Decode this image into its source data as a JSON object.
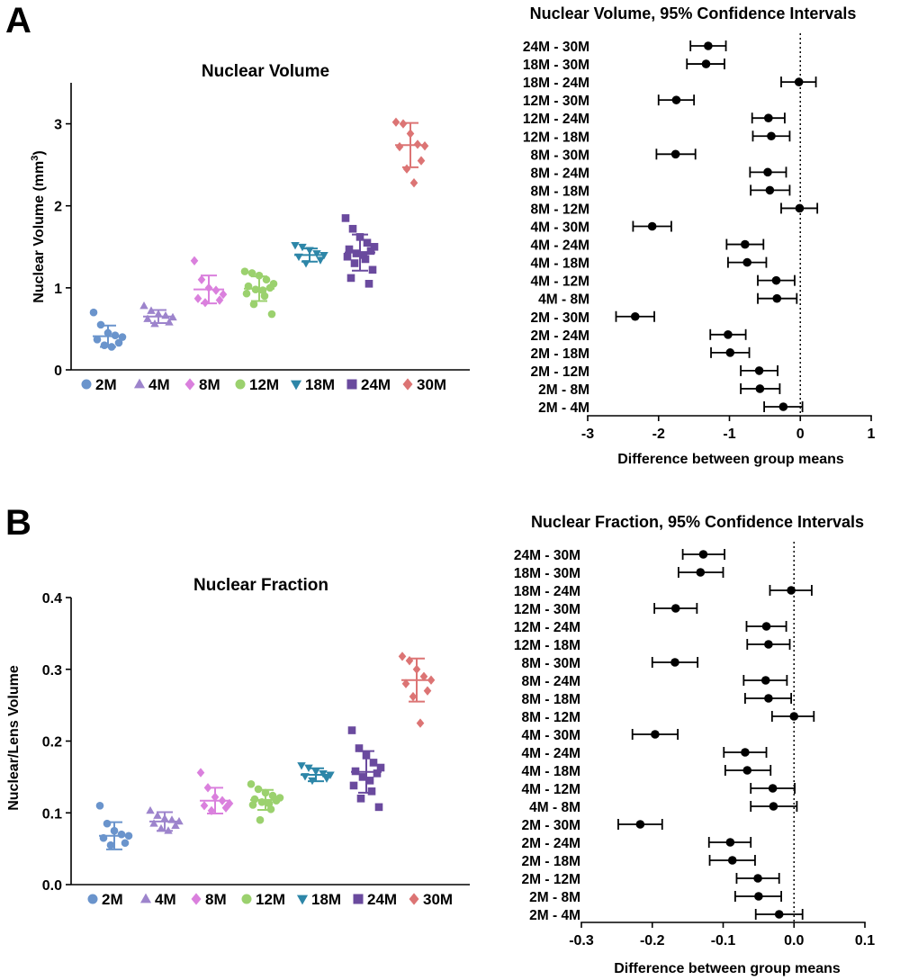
{
  "panels": {
    "a": "A",
    "b": "B"
  },
  "chart_data": [
    {
      "type": "scatter",
      "title": "Nuclear Volume",
      "ylabel": "Nuclear Volume (mm",
      "ylabel_sup": "3",
      "ylabel_close": ")",
      "ylim": [
        0,
        3.5
      ],
      "yticks": [
        "0",
        "1",
        "2",
        "3"
      ],
      "tickvals": [
        0,
        1,
        2,
        3
      ],
      "series": [
        {
          "name": "2M",
          "color": "#6a94cc",
          "marker": "circle",
          "mean": 0.41,
          "sd": 0.13,
          "values": [
            0.7,
            0.55,
            0.45,
            0.42,
            0.4,
            0.37,
            0.33,
            0.3,
            0.28
          ]
        },
        {
          "name": "4M",
          "color": "#9d84cc",
          "marker": "triangle-up",
          "mean": 0.65,
          "sd": 0.08,
          "values": [
            0.78,
            0.72,
            0.68,
            0.66,
            0.64,
            0.62,
            0.58,
            0.56
          ]
        },
        {
          "name": "8M",
          "color": "#da80dd",
          "marker": "diamond",
          "mean": 0.98,
          "sd": 0.17,
          "values": [
            1.33,
            1.1,
            1.0,
            0.97,
            0.92,
            0.87,
            0.85,
            0.82
          ]
        },
        {
          "name": "12M",
          "color": "#9bd16e",
          "marker": "circle",
          "mean": 0.99,
          "sd": 0.15,
          "values": [
            1.2,
            1.18,
            1.15,
            1.1,
            1.05,
            1.02,
            1.0,
            0.98,
            0.97,
            0.93,
            0.9,
            0.8,
            0.68
          ]
        },
        {
          "name": "18M",
          "color": "#2d86a8",
          "marker": "triangle-down",
          "mean": 1.4,
          "sd": 0.08,
          "values": [
            1.52,
            1.5,
            1.46,
            1.42,
            1.4,
            1.38,
            1.34,
            1.3
          ]
        },
        {
          "name": "24M",
          "color": "#6a4a9e",
          "marker": "square",
          "mean": 1.43,
          "sd": 0.22,
          "values": [
            1.85,
            1.72,
            1.62,
            1.55,
            1.5,
            1.47,
            1.45,
            1.42,
            1.4,
            1.38,
            1.35,
            1.3,
            1.22,
            1.12,
            1.05
          ]
        },
        {
          "name": "30M",
          "color": "#dc7474",
          "marker": "diamond",
          "mean": 2.74,
          "sd": 0.27,
          "values": [
            3.02,
            3.0,
            2.88,
            2.75,
            2.73,
            2.72,
            2.55,
            2.45,
            2.28
          ]
        }
      ]
    },
    {
      "type": "forest",
      "title": "Nuclear Volume, 95% Confidence Intervals",
      "xlabel": "Difference between group means",
      "xlim": [
        -3,
        1
      ],
      "xticks": [
        "-3",
        "-2",
        "-1",
        "0",
        "1"
      ],
      "tickvals": [
        -3,
        -2,
        -1,
        0,
        1
      ],
      "rows": [
        {
          "label": "24M - 30M",
          "mean": -1.3,
          "lo": -1.55,
          "hi": -1.05
        },
        {
          "label": "18M - 30M",
          "mean": -1.33,
          "lo": -1.6,
          "hi": -1.07
        },
        {
          "label": "18M - 24M",
          "mean": -0.02,
          "lo": -0.27,
          "hi": 0.22
        },
        {
          "label": "12M - 30M",
          "mean": -1.75,
          "lo": -2.0,
          "hi": -1.5
        },
        {
          "label": "12M - 24M",
          "mean": -0.45,
          "lo": -0.68,
          "hi": -0.22
        },
        {
          "label": "12M - 18M",
          "mean": -0.41,
          "lo": -0.67,
          "hi": -0.15
        },
        {
          "label": "8M - 30M",
          "mean": -1.76,
          "lo": -2.03,
          "hi": -1.48
        },
        {
          "label": "8M - 24M",
          "mean": -0.46,
          "lo": -0.71,
          "hi": -0.2
        },
        {
          "label": "8M - 18M",
          "mean": -0.43,
          "lo": -0.7,
          "hi": -0.15
        },
        {
          "label": "8M - 12M",
          "mean": -0.01,
          "lo": -0.27,
          "hi": 0.24
        },
        {
          "label": "4M - 30M",
          "mean": -2.09,
          "lo": -2.36,
          "hi": -1.82
        },
        {
          "label": "4M - 24M",
          "mean": -0.78,
          "lo": -1.04,
          "hi": -0.52
        },
        {
          "label": "4M - 18M",
          "mean": -0.75,
          "lo": -1.02,
          "hi": -0.48
        },
        {
          "label": "4M - 12M",
          "mean": -0.34,
          "lo": -0.6,
          "hi": -0.08
        },
        {
          "label": "4M - 8M",
          "mean": -0.33,
          "lo": -0.6,
          "hi": -0.05
        },
        {
          "label": "2M - 30M",
          "mean": -2.33,
          "lo": -2.6,
          "hi": -2.06
        },
        {
          "label": "2M - 24M",
          "mean": -1.02,
          "lo": -1.27,
          "hi": -0.77
        },
        {
          "label": "2M - 18M",
          "mean": -0.99,
          "lo": -1.26,
          "hi": -0.72
        },
        {
          "label": "2M - 12M",
          "mean": -0.58,
          "lo": -0.84,
          "hi": -0.32
        },
        {
          "label": "2M - 8M",
          "mean": -0.57,
          "lo": -0.84,
          "hi": -0.29
        },
        {
          "label": "2M - 4M",
          "mean": -0.24,
          "lo": -0.51,
          "hi": 0.03
        }
      ]
    },
    {
      "type": "scatter",
      "title": "Nuclear Fraction",
      "ylabel": "Nuclear/Lens Volume",
      "ylim": [
        0,
        0.4
      ],
      "yticks": [
        "0.0",
        "0.1",
        "0.2",
        "0.3",
        "0.4"
      ],
      "tickvals": [
        0,
        0.1,
        0.2,
        0.3,
        0.4
      ],
      "series": [
        {
          "name": "2M",
          "color": "#6a94cc",
          "marker": "circle",
          "mean": 0.068,
          "sd": 0.019,
          "values": [
            0.11,
            0.085,
            0.075,
            0.07,
            0.068,
            0.065,
            0.058,
            0.055
          ]
        },
        {
          "name": "4M",
          "color": "#9d84cc",
          "marker": "triangle-up",
          "mean": 0.088,
          "sd": 0.013,
          "values": [
            0.103,
            0.096,
            0.092,
            0.09,
            0.088,
            0.085,
            0.082,
            0.078,
            0.075
          ]
        },
        {
          "name": "8M",
          "color": "#da80dd",
          "marker": "diamond",
          "mean": 0.117,
          "sd": 0.018,
          "values": [
            0.156,
            0.135,
            0.122,
            0.117,
            0.113,
            0.11,
            0.107,
            0.103
          ]
        },
        {
          "name": "12M",
          "color": "#9bd16e",
          "marker": "circle",
          "mean": 0.118,
          "sd": 0.014,
          "values": [
            0.14,
            0.133,
            0.128,
            0.124,
            0.121,
            0.119,
            0.117,
            0.115,
            0.113,
            0.111,
            0.105,
            0.09
          ]
        },
        {
          "name": "18M",
          "color": "#2d86a8",
          "marker": "triangle-down",
          "mean": 0.153,
          "sd": 0.009,
          "values": [
            0.166,
            0.163,
            0.158,
            0.155,
            0.153,
            0.151,
            0.148,
            0.145
          ]
        },
        {
          "name": "24M",
          "color": "#6a4a9e",
          "marker": "square",
          "mean": 0.157,
          "sd": 0.029,
          "values": [
            0.215,
            0.19,
            0.18,
            0.17,
            0.163,
            0.158,
            0.155,
            0.15,
            0.145,
            0.138,
            0.13,
            0.12,
            0.108
          ]
        },
        {
          "name": "30M",
          "color": "#dc7474",
          "marker": "diamond",
          "mean": 0.285,
          "sd": 0.03,
          "values": [
            0.318,
            0.312,
            0.3,
            0.29,
            0.285,
            0.28,
            0.27,
            0.262,
            0.225
          ]
        }
      ]
    },
    {
      "type": "forest",
      "title": "Nuclear Fraction, 95% Confidence Intervals",
      "xlabel": "Difference between group means",
      "xlim": [
        -0.3,
        0.1
      ],
      "xticks": [
        "-0.3",
        "-0.2",
        "-0.1",
        "0.0",
        "0.1"
      ],
      "tickvals": [
        -0.3,
        -0.2,
        -0.1,
        0,
        0.1
      ],
      "rows": [
        {
          "label": "24M - 30M",
          "mean": -0.128,
          "lo": -0.157,
          "hi": -0.098
        },
        {
          "label": "18M - 30M",
          "mean": -0.132,
          "lo": -0.163,
          "hi": -0.1
        },
        {
          "label": "18M - 24M",
          "mean": -0.004,
          "lo": -0.034,
          "hi": 0.025
        },
        {
          "label": "12M - 30M",
          "mean": -0.167,
          "lo": -0.197,
          "hi": -0.137
        },
        {
          "label": "12M - 24M",
          "mean": -0.039,
          "lo": -0.067,
          "hi": -0.011
        },
        {
          "label": "12M - 18M",
          "mean": -0.036,
          "lo": -0.066,
          "hi": -0.006
        },
        {
          "label": "8M - 30M",
          "mean": -0.168,
          "lo": -0.2,
          "hi": -0.136
        },
        {
          "label": "8M - 24M",
          "mean": -0.04,
          "lo": -0.071,
          "hi": -0.01
        },
        {
          "label": "8M - 18M",
          "mean": -0.036,
          "lo": -0.069,
          "hi": -0.004
        },
        {
          "label": "8M - 12M",
          "mean": 0.0,
          "lo": -0.031,
          "hi": 0.028
        },
        {
          "label": "4M - 30M",
          "mean": -0.196,
          "lo": -0.228,
          "hi": -0.164
        },
        {
          "label": "4M - 24M",
          "mean": -0.069,
          "lo": -0.099,
          "hi": -0.039
        },
        {
          "label": "4M - 18M",
          "mean": -0.066,
          "lo": -0.097,
          "hi": -0.033
        },
        {
          "label": "4M - 12M",
          "mean": -0.03,
          "lo": -0.061,
          "hi": 0.001
        },
        {
          "label": "4M - 8M",
          "mean": -0.029,
          "lo": -0.061,
          "hi": 0.004
        },
        {
          "label": "2M - 30M",
          "mean": -0.217,
          "lo": -0.248,
          "hi": -0.186
        },
        {
          "label": "2M - 24M",
          "mean": -0.09,
          "lo": -0.12,
          "hi": -0.061
        },
        {
          "label": "2M - 18M",
          "mean": -0.087,
          "lo": -0.119,
          "hi": -0.055
        },
        {
          "label": "2M - 12M",
          "mean": -0.051,
          "lo": -0.081,
          "hi": -0.021
        },
        {
          "label": "2M - 8M",
          "mean": -0.05,
          "lo": -0.083,
          "hi": -0.018
        },
        {
          "label": "2M - 4M",
          "mean": -0.021,
          "lo": -0.054,
          "hi": 0.012
        }
      ]
    }
  ]
}
